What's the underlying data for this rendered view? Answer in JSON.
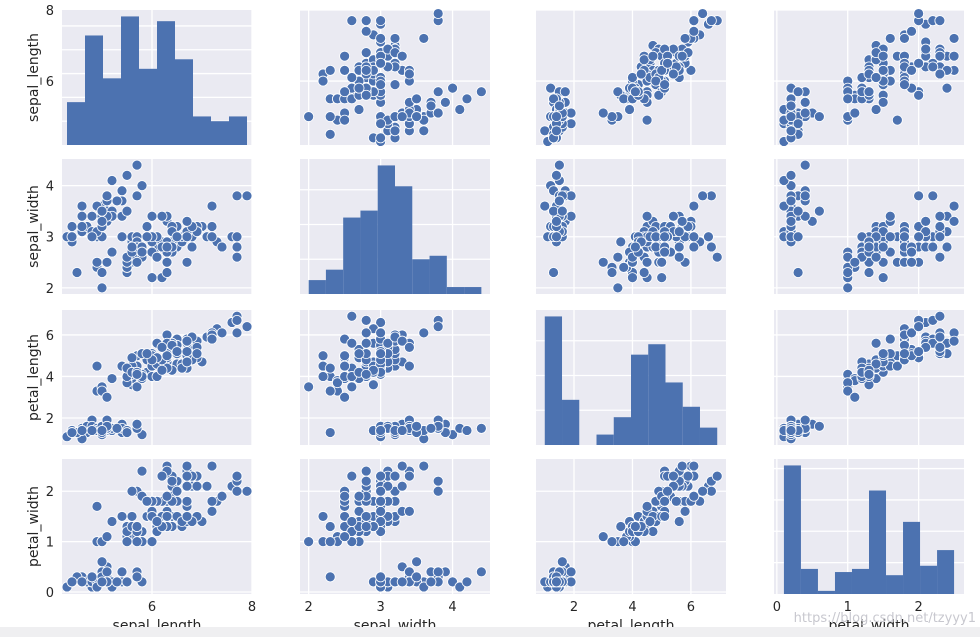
{
  "chart_data": {
    "type": "pairplot",
    "variables": [
      "sepal_length",
      "sepal_width",
      "petal_length",
      "petal_width"
    ],
    "axis_labels": [
      "sepal_length",
      "sepal_width",
      "petal_length",
      "petal_width"
    ],
    "ranges": [
      [
        4.2,
        8.0
      ],
      [
        1.88,
        4.52
      ],
      [
        0.7,
        7.2
      ],
      [
        -0.04,
        2.64
      ]
    ],
    "ticks": [
      [
        6,
        8
      ],
      [
        2,
        3,
        4
      ],
      [
        2,
        4,
        6
      ],
      [
        0,
        1,
        2
      ]
    ],
    "row_ticks": [
      [
        6,
        8
      ],
      [
        2,
        3,
        4
      ],
      [
        2,
        4,
        6
      ],
      [
        0,
        1,
        2
      ]
    ],
    "col_ticks": [
      [
        6,
        8
      ],
      [
        2,
        3,
        4
      ],
      [
        2,
        4,
        6
      ],
      [
        0,
        1,
        2
      ]
    ],
    "row_tick_labels": [
      [
        "6",
        "8"
      ],
      [
        "2",
        "3",
        "4"
      ],
      [
        "2",
        "4",
        "6"
      ],
      [
        "0",
        "1",
        "2"
      ]
    ],
    "col_tick_labels": [
      [
        "6",
        "8"
      ],
      [
        "2",
        "3",
        "4"
      ],
      [
        "2",
        "4",
        "6"
      ],
      [
        "0",
        "1",
        "2"
      ]
    ],
    "diagonal": [
      {
        "variable": "sepal_length",
        "bin_edges": [
          4.3,
          4.66,
          5.02,
          5.38,
          5.74,
          6.1,
          6.46,
          6.82,
          7.18,
          7.54,
          7.9
        ],
        "counts": [
          9,
          23,
          14,
          27,
          16,
          26,
          18,
          6,
          5,
          6
        ]
      },
      {
        "variable": "sepal_width",
        "bin_edges": [
          2.0,
          2.24,
          2.48,
          2.72,
          2.96,
          3.2,
          3.44,
          3.68,
          3.92,
          4.16,
          4.4
        ],
        "counts": [
          4,
          7,
          22,
          24,
          37,
          31,
          10,
          11,
          2,
          2
        ]
      },
      {
        "variable": "petal_length",
        "bin_edges": [
          1.0,
          1.59,
          2.18,
          2.77,
          3.36,
          3.95,
          4.54,
          5.13,
          5.72,
          6.31,
          6.9
        ],
        "counts": [
          37,
          13,
          0,
          3,
          8,
          26,
          29,
          18,
          11,
          5
        ]
      },
      {
        "variable": "petal_width",
        "bin_edges": [
          0.1,
          0.34,
          0.58,
          0.82,
          1.06,
          1.3,
          1.54,
          1.78,
          2.02,
          2.26,
          2.5
        ],
        "counts": [
          41,
          8,
          1,
          7,
          8,
          33,
          6,
          23,
          9,
          14
        ]
      }
    ],
    "points": [
      [
        5.1,
        3.5,
        1.4,
        0.2
      ],
      [
        4.9,
        3.0,
        1.4,
        0.2
      ],
      [
        4.7,
        3.2,
        1.3,
        0.2
      ],
      [
        4.6,
        3.1,
        1.5,
        0.2
      ],
      [
        5.0,
        3.6,
        1.4,
        0.2
      ],
      [
        5.4,
        3.9,
        1.7,
        0.4
      ],
      [
        4.6,
        3.4,
        1.4,
        0.3
      ],
      [
        5.0,
        3.4,
        1.5,
        0.2
      ],
      [
        4.4,
        2.9,
        1.4,
        0.2
      ],
      [
        4.9,
        3.1,
        1.5,
        0.1
      ],
      [
        5.4,
        3.7,
        1.5,
        0.2
      ],
      [
        4.8,
        3.4,
        1.6,
        0.2
      ],
      [
        4.8,
        3.0,
        1.4,
        0.1
      ],
      [
        4.3,
        3.0,
        1.1,
        0.1
      ],
      [
        5.8,
        4.0,
        1.2,
        0.2
      ],
      [
        5.7,
        4.4,
        1.5,
        0.4
      ],
      [
        5.4,
        3.9,
        1.3,
        0.4
      ],
      [
        5.1,
        3.5,
        1.4,
        0.3
      ],
      [
        5.7,
        3.8,
        1.7,
        0.3
      ],
      [
        5.1,
        3.8,
        1.5,
        0.3
      ],
      [
        5.4,
        3.4,
        1.7,
        0.2
      ],
      [
        5.1,
        3.7,
        1.5,
        0.4
      ],
      [
        4.6,
        3.6,
        1.0,
        0.2
      ],
      [
        5.1,
        3.3,
        1.7,
        0.5
      ],
      [
        4.8,
        3.4,
        1.9,
        0.2
      ],
      [
        5.0,
        3.0,
        1.6,
        0.2
      ],
      [
        5.0,
        3.4,
        1.6,
        0.4
      ],
      [
        5.2,
        3.5,
        1.5,
        0.2
      ],
      [
        5.2,
        3.4,
        1.4,
        0.2
      ],
      [
        4.7,
        3.2,
        1.6,
        0.2
      ],
      [
        4.8,
        3.1,
        1.6,
        0.2
      ],
      [
        5.4,
        3.4,
        1.5,
        0.4
      ],
      [
        5.2,
        4.1,
        1.5,
        0.1
      ],
      [
        5.5,
        4.2,
        1.4,
        0.2
      ],
      [
        4.9,
        3.1,
        1.5,
        0.2
      ],
      [
        5.0,
        3.2,
        1.2,
        0.2
      ],
      [
        5.5,
        3.5,
        1.3,
        0.2
      ],
      [
        4.9,
        3.6,
        1.4,
        0.1
      ],
      [
        4.4,
        3.0,
        1.3,
        0.2
      ],
      [
        5.1,
        3.4,
        1.5,
        0.2
      ],
      [
        5.0,
        3.5,
        1.3,
        0.3
      ],
      [
        4.5,
        2.3,
        1.3,
        0.3
      ],
      [
        4.4,
        3.2,
        1.3,
        0.2
      ],
      [
        5.0,
        3.5,
        1.6,
        0.6
      ],
      [
        5.1,
        3.8,
        1.9,
        0.4
      ],
      [
        4.8,
        3.0,
        1.4,
        0.3
      ],
      [
        5.1,
        3.8,
        1.6,
        0.2
      ],
      [
        4.6,
        3.2,
        1.4,
        0.2
      ],
      [
        5.3,
        3.7,
        1.5,
        0.2
      ],
      [
        5.0,
        3.3,
        1.4,
        0.2
      ],
      [
        7.0,
        3.2,
        4.7,
        1.4
      ],
      [
        6.4,
        3.2,
        4.5,
        1.5
      ],
      [
        6.9,
        3.1,
        4.9,
        1.5
      ],
      [
        5.5,
        2.3,
        4.0,
        1.3
      ],
      [
        6.5,
        2.8,
        4.6,
        1.5
      ],
      [
        5.7,
        2.8,
        4.5,
        1.3
      ],
      [
        6.3,
        3.3,
        4.7,
        1.6
      ],
      [
        4.9,
        2.4,
        3.3,
        1.0
      ],
      [
        6.6,
        2.9,
        4.6,
        1.3
      ],
      [
        5.2,
        2.7,
        3.9,
        1.4
      ],
      [
        5.0,
        2.0,
        3.5,
        1.0
      ],
      [
        5.9,
        3.0,
        4.2,
        1.5
      ],
      [
        6.0,
        2.2,
        4.0,
        1.0
      ],
      [
        6.1,
        2.9,
        4.7,
        1.4
      ],
      [
        5.6,
        2.9,
        3.6,
        1.3
      ],
      [
        6.7,
        3.1,
        4.4,
        1.4
      ],
      [
        5.6,
        3.0,
        4.5,
        1.5
      ],
      [
        5.8,
        2.7,
        4.1,
        1.0
      ],
      [
        6.2,
        2.2,
        4.5,
        1.5
      ],
      [
        5.6,
        2.5,
        3.9,
        1.1
      ],
      [
        5.9,
        3.2,
        4.8,
        1.8
      ],
      [
        6.1,
        2.8,
        4.0,
        1.3
      ],
      [
        6.3,
        2.5,
        4.9,
        1.5
      ],
      [
        6.1,
        2.8,
        4.7,
        1.2
      ],
      [
        6.4,
        2.9,
        4.3,
        1.3
      ],
      [
        6.6,
        3.0,
        4.4,
        1.4
      ],
      [
        6.8,
        2.8,
        4.8,
        1.4
      ],
      [
        6.7,
        3.0,
        5.0,
        1.7
      ],
      [
        6.0,
        2.9,
        4.5,
        1.5
      ],
      [
        5.7,
        2.6,
        3.5,
        1.0
      ],
      [
        5.5,
        2.4,
        3.8,
        1.1
      ],
      [
        5.5,
        2.4,
        3.7,
        1.0
      ],
      [
        5.8,
        2.7,
        3.9,
        1.2
      ],
      [
        6.0,
        2.7,
        5.1,
        1.6
      ],
      [
        5.4,
        3.0,
        4.5,
        1.5
      ],
      [
        6.0,
        3.4,
        4.5,
        1.6
      ],
      [
        6.7,
        3.1,
        4.7,
        1.5
      ],
      [
        6.3,
        2.3,
        4.4,
        1.3
      ],
      [
        5.6,
        3.0,
        4.1,
        1.3
      ],
      [
        5.5,
        2.5,
        4.0,
        1.3
      ],
      [
        5.5,
        2.6,
        4.4,
        1.2
      ],
      [
        6.1,
        3.0,
        4.6,
        1.4
      ],
      [
        5.8,
        2.6,
        4.0,
        1.2
      ],
      [
        5.0,
        2.3,
        3.3,
        1.0
      ],
      [
        5.6,
        2.7,
        4.2,
        1.3
      ],
      [
        5.7,
        3.0,
        4.2,
        1.2
      ],
      [
        5.7,
        2.9,
        4.2,
        1.3
      ],
      [
        6.2,
        2.9,
        4.3,
        1.3
      ],
      [
        5.1,
        2.5,
        3.0,
        1.1
      ],
      [
        5.7,
        2.8,
        4.1,
        1.3
      ],
      [
        6.3,
        3.3,
        6.0,
        2.5
      ],
      [
        5.8,
        2.7,
        5.1,
        1.9
      ],
      [
        7.1,
        3.0,
        5.9,
        2.1
      ],
      [
        6.3,
        2.9,
        5.6,
        1.8
      ],
      [
        6.5,
        3.0,
        5.8,
        2.2
      ],
      [
        7.6,
        3.0,
        6.6,
        2.1
      ],
      [
        4.9,
        2.5,
        4.5,
        1.7
      ],
      [
        7.3,
        2.9,
        6.3,
        1.8
      ],
      [
        6.7,
        2.5,
        5.8,
        1.8
      ],
      [
        7.2,
        3.6,
        6.1,
        2.5
      ],
      [
        6.5,
        3.2,
        5.1,
        2.0
      ],
      [
        6.4,
        2.7,
        5.3,
        1.9
      ],
      [
        6.8,
        3.0,
        5.5,
        2.1
      ],
      [
        5.7,
        2.5,
        5.0,
        2.0
      ],
      [
        5.8,
        2.8,
        5.1,
        2.4
      ],
      [
        6.4,
        3.2,
        5.3,
        2.3
      ],
      [
        6.5,
        3.0,
        5.5,
        1.8
      ],
      [
        7.7,
        3.8,
        6.7,
        2.2
      ],
      [
        7.7,
        2.6,
        6.9,
        2.3
      ],
      [
        6.0,
        2.2,
        5.0,
        1.5
      ],
      [
        6.9,
        3.2,
        5.7,
        2.3
      ],
      [
        5.6,
        2.8,
        4.9,
        2.0
      ],
      [
        7.7,
        2.8,
        6.7,
        2.0
      ],
      [
        6.3,
        2.7,
        4.9,
        1.8
      ],
      [
        6.7,
        3.3,
        5.7,
        2.1
      ],
      [
        7.2,
        3.2,
        6.0,
        1.8
      ],
      [
        6.2,
        2.8,
        4.8,
        1.8
      ],
      [
        6.1,
        3.0,
        4.9,
        1.8
      ],
      [
        6.4,
        2.8,
        5.6,
        2.1
      ],
      [
        7.2,
        3.0,
        5.8,
        1.6
      ],
      [
        7.4,
        2.8,
        6.1,
        1.9
      ],
      [
        7.9,
        3.8,
        6.4,
        2.0
      ],
      [
        6.4,
        2.8,
        5.6,
        2.2
      ],
      [
        6.3,
        2.8,
        5.1,
        1.5
      ],
      [
        6.1,
        2.6,
        5.6,
        1.4
      ],
      [
        7.7,
        3.0,
        6.1,
        2.3
      ],
      [
        6.3,
        3.4,
        5.6,
        2.4
      ],
      [
        6.4,
        3.1,
        5.5,
        1.8
      ],
      [
        6.0,
        3.0,
        4.8,
        1.8
      ],
      [
        6.9,
        3.1,
        5.4,
        2.1
      ],
      [
        6.7,
        3.1,
        5.6,
        2.4
      ],
      [
        6.9,
        3.1,
        5.1,
        2.3
      ],
      [
        5.8,
        2.7,
        5.1,
        1.9
      ],
      [
        6.8,
        3.2,
        5.9,
        2.3
      ],
      [
        6.7,
        3.3,
        5.7,
        2.5
      ],
      [
        6.7,
        3.0,
        5.2,
        2.3
      ],
      [
        6.3,
        2.5,
        5.0,
        1.9
      ],
      [
        6.5,
        3.0,
        5.2,
        2.0
      ],
      [
        6.2,
        3.4,
        5.4,
        2.3
      ],
      [
        5.9,
        3.0,
        5.1,
        1.8
      ]
    ],
    "colors": {
      "marker": "#4c72b0",
      "marker_edge": "#ffffff",
      "panel_bg": "#eaeaf2",
      "grid": "#ffffff",
      "text": "#262626"
    },
    "grid": true,
    "legend": "none"
  },
  "watermark": "https://blog.csdn.net/tzyyy1"
}
